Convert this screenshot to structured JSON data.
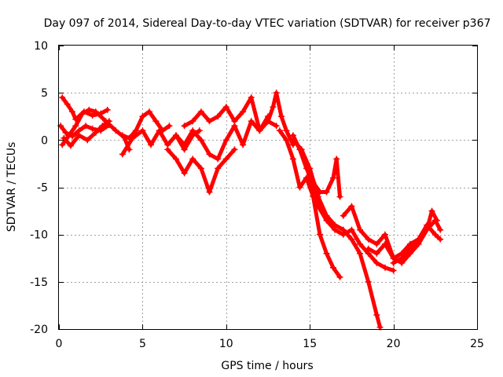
{
  "chart_data": {
    "type": "scatter",
    "title": "Day 097 of 2014, Sidereal Day-to-day VTEC variation (SDTVAR) for receiver p367",
    "xlabel": "GPS time / hours",
    "ylabel": "SDTVAR / TECUs",
    "xlim": [
      0,
      25
    ],
    "ylim": [
      -20,
      10
    ],
    "xticks": [
      0,
      5,
      10,
      15,
      20,
      25
    ],
    "yticks": [
      10,
      5,
      0,
      -5,
      -10,
      -15,
      -20
    ],
    "grid": true,
    "marker": "+",
    "color": "#ff0000",
    "series": [
      {
        "x": [
          0.2,
          0.5,
          0.8,
          1.0,
          1.5,
          2.0,
          2.5,
          2.9
        ],
        "values": [
          4.5,
          3.8,
          3.0,
          2.2,
          3.0,
          2.6,
          2.8,
          3.2
        ]
      },
      {
        "x": [
          0.2,
          0.6,
          1.0,
          1.4,
          1.8,
          2.2,
          2.8,
          3.4,
          3.9,
          4.2
        ],
        "values": [
          -0.5,
          0.5,
          1.5,
          2.8,
          3.2,
          3.0,
          2.0,
          1.0,
          0.3,
          -1.0
        ]
      },
      {
        "x": [
          0.1,
          0.4,
          0.8,
          1.2,
          1.6,
          2.0,
          2.5,
          3.0
        ],
        "values": [
          1.5,
          0.8,
          0.4,
          1.0,
          1.5,
          1.2,
          1.0,
          1.6
        ]
      },
      {
        "x": [
          0.3,
          0.7,
          1.2,
          1.7,
          2.2,
          2.6,
          3.0
        ],
        "values": [
          0.2,
          -0.6,
          0.5,
          0.0,
          0.8,
          1.5,
          2.0
        ]
      },
      {
        "x": [
          3.8,
          4.2,
          4.6,
          5.0,
          5.4,
          5.8,
          6.2,
          6.6
        ],
        "values": [
          0.5,
          0.2,
          1.0,
          2.5,
          3.0,
          2.0,
          1.0,
          1.5
        ]
      },
      {
        "x": [
          3.8,
          4.4,
          5.0,
          5.5,
          6.0,
          6.5,
          7.0,
          7.5,
          8.0,
          8.4
        ],
        "values": [
          -1.5,
          0.2,
          1.0,
          -0.5,
          1.0,
          -0.5,
          0.5,
          -1.0,
          0.5,
          1.0
        ]
      },
      {
        "x": [
          6.5,
          7.0,
          7.5,
          8.0,
          8.5,
          9.0,
          9.5,
          10.0,
          10.5
        ],
        "values": [
          -1.0,
          -2.0,
          -3.5,
          -2.0,
          -3.0,
          -5.5,
          -3.0,
          -2.0,
          -1.0
        ]
      },
      {
        "x": [
          7.5,
          8.0,
          8.5,
          9.0,
          9.5,
          10.0,
          10.5,
          11.0,
          11.5,
          12.0,
          12.5,
          13.0
        ],
        "values": [
          1.5,
          2.0,
          3.0,
          2.0,
          2.5,
          3.5,
          2.0,
          3.0,
          4.5,
          1.0,
          2.0,
          1.5
        ]
      },
      {
        "x": [
          7.0,
          7.5,
          8.0,
          8.5,
          9.0,
          9.5,
          10.0,
          10.5,
          11.0,
          11.5,
          12.0,
          12.5
        ],
        "values": [
          0.5,
          -0.5,
          1.0,
          0.0,
          -1.5,
          -2.0,
          0.0,
          1.5,
          -0.5,
          2.0,
          1.0,
          2.5
        ]
      },
      {
        "x": [
          12.5,
          12.8,
          13.0,
          13.3,
          13.6,
          14.0
        ],
        "values": [
          2.0,
          3.5,
          5.0,
          2.5,
          1.0,
          -0.5
        ]
      },
      {
        "x": [
          13.2,
          13.6,
          14.0,
          14.4,
          14.8,
          15.2,
          15.6,
          16.0,
          16.4,
          16.8
        ],
        "values": [
          1.0,
          0.0,
          -2.0,
          -5.0,
          -4.0,
          -6.0,
          -10.0,
          -12.0,
          -13.5,
          -14.5
        ]
      },
      {
        "x": [
          14.0,
          14.4,
          14.8,
          15.2,
          15.6,
          16.0,
          16.4,
          16.6,
          16.8
        ],
        "values": [
          0.5,
          -1.0,
          -3.0,
          -4.5,
          -5.5,
          -5.5,
          -4.0,
          -2.0,
          -6.0
        ]
      },
      {
        "x": [
          14.0,
          14.5,
          15.0,
          15.5,
          16.0,
          16.5,
          17.0,
          17.5,
          18.0,
          18.5,
          19.0,
          19.2
        ],
        "values": [
          0.0,
          -1.0,
          -3.0,
          -6.0,
          -8.0,
          -9.0,
          -9.5,
          -10.5,
          -12.0,
          -15.0,
          -18.5,
          -19.8
        ]
      },
      {
        "x": [
          14.5,
          15.0,
          15.5,
          16.0,
          16.5,
          17.0,
          17.5,
          18.0,
          18.5,
          19.0,
          19.5,
          20.0
        ],
        "values": [
          -1.0,
          -4.0,
          -7.0,
          -8.5,
          -9.5,
          -10.0,
          -9.5,
          -11.0,
          -12.0,
          -13.0,
          -13.5,
          -13.8
        ]
      },
      {
        "x": [
          17.0,
          17.5,
          18.0,
          18.5,
          19.0,
          19.5,
          20.0,
          20.5,
          21.0,
          21.5,
          22.0,
          22.5,
          22.8
        ],
        "values": [
          -8.0,
          -7.0,
          -9.5,
          -10.5,
          -11.0,
          -10.0,
          -12.5,
          -13.0,
          -12.0,
          -11.0,
          -9.5,
          -8.5,
          -9.5
        ]
      },
      {
        "x": [
          18.5,
          19.0,
          19.5,
          20.0,
          20.5,
          21.0,
          21.5,
          22.0,
          22.5,
          22.8
        ],
        "values": [
          -11.5,
          -12.0,
          -11.0,
          -12.5,
          -12.0,
          -11.0,
          -10.5,
          -9.0,
          -10.0,
          -10.5
        ]
      },
      {
        "x": [
          20.0,
          20.5,
          21.0,
          21.5,
          22.0,
          22.3,
          22.6
        ],
        "values": [
          -13.0,
          -12.5,
          -11.5,
          -10.5,
          -9.5,
          -7.5,
          -8.5
        ]
      }
    ]
  }
}
